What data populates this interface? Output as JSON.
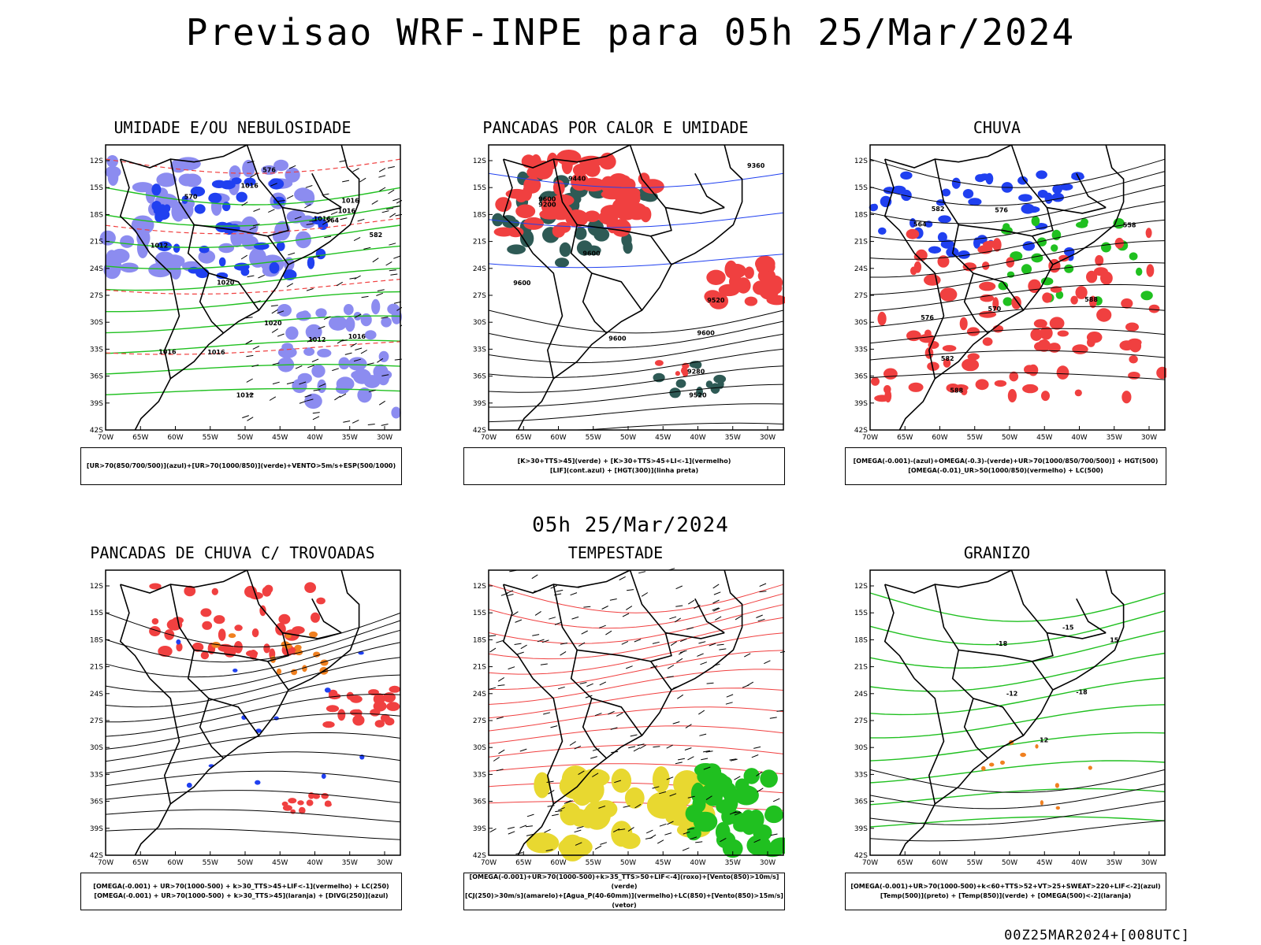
{
  "title": "Previsao WRF-INPE  para 05h 25/Mar/2024",
  "mid_title": "05h 25/Mar/2024",
  "footer": "00Z25MAR2024+[008UTC]",
  "lat_ticks": [
    "12S",
    "15S",
    "18S",
    "21S",
    "24S",
    "27S",
    "30S",
    "33S",
    "36S",
    "39S",
    "42S"
  ],
  "lon_ticks": [
    "70W",
    "65W",
    "60W",
    "55W",
    "50W",
    "45W",
    "40W",
    "35W",
    "30W"
  ],
  "colors": {
    "red": "#f04040",
    "blue": "#2040f0",
    "green": "#20c020",
    "orange": "#f08020",
    "yellow": "#e8d830",
    "teal": "#2e5a55",
    "lavender": "#8c8cf0"
  },
  "panels": [
    {
      "title": "UMIDADE E/OU NEBULOSIDADE",
      "legend": [
        "[UR>70(850/700/500)](azul)+[UR>70(1000/850)](verde)+VENTO>5m/s+ESP(500/1000)"
      ],
      "labels": [
        "1012",
        "1012",
        "1016",
        "1016",
        "1016",
        "1020",
        "1016",
        "1016",
        "1016",
        "1012",
        "1016",
        "1020",
        "576",
        "570",
        "564",
        "582"
      ]
    },
    {
      "title": "PANCADAS POR CALOR E UMIDADE",
      "legend": [
        "[K>30+TTS>45](verde) + [K>30+TTS>45+LI<-1](vermelho)",
        "[LIF](cont.azul) + [HGT(300)](linha preta)"
      ],
      "labels": [
        "9600",
        "9600",
        "9600",
        "9600",
        "9600",
        "9520",
        "9440",
        "9360",
        "9280",
        "9200",
        "9520"
      ]
    },
    {
      "title": "CHUVA",
      "legend": [
        "[OMEGA(-0.001)-(azul)+OMEGA(-0.3)-(verde)+UR>70(1000/850/700/500)] + HGT(500)",
        "[OMEGA(-0.01)_UR>50(1000/850)(vermelho) + LC(500)"
      ],
      "labels": [
        "588",
        "588",
        "582",
        "576",
        "570",
        "564",
        "558",
        "582",
        "576"
      ]
    },
    {
      "title": "PANCADAS DE CHUVA C/ TROVOADAS",
      "legend": [
        "[OMEGA(-0.001) + UR>70(1000-500) + k>30_TTS>45+LIF<-1](vermelho) + LC(250)",
        "[OMEGA(-0.001) + UR>70(1000-500) + k>30_TTS>45](laranja) + [DIVG(250)](azul)"
      ],
      "labels": []
    },
    {
      "title": "TEMPESTADE",
      "legend": [
        "[OMEGA(-0.001)+UR>70(1000-500)+k>35_TTS>50+LIF<-4](roxo)+[Vento(850)>10m/s](verde)",
        "[CJ(250)>30m/s](amarelo)+[Agua_P(40-60mm)](vermelho)+LC(850)+[Vento(850)>15m/s](vetor)"
      ],
      "labels": []
    },
    {
      "title": "GRANIZO",
      "legend": [
        "[OMEGA(-0.001)+UR>70(1000-500)+k<60+TTS>52+VT>25+SWEAT>220+LIF<-2](azul)",
        "[Temp(500)](preto) + [Temp(850)](verde) + [OMEGA(500)<-2](laranja)"
      ],
      "labels": [
        "-12",
        "-15",
        "-18",
        "-18",
        "12",
        "15"
      ]
    }
  ]
}
